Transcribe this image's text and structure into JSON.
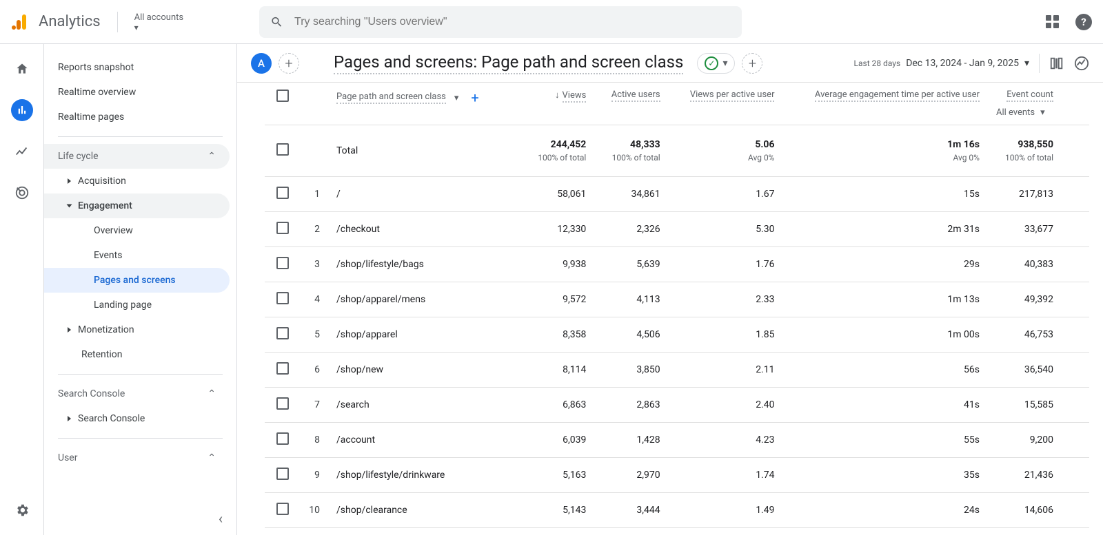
{
  "topbar": {
    "app_name": "Analytics",
    "accounts_label": "All accounts",
    "search_placeholder": "Try searching \"Users overview\""
  },
  "sidebar": {
    "snapshot": "Reports snapshot",
    "realtime_overview": "Realtime overview",
    "realtime_pages": "Realtime pages",
    "life_cycle": "Life cycle",
    "acquisition": "Acquisition",
    "engagement": "Engagement",
    "eng_overview": "Overview",
    "eng_events": "Events",
    "eng_pages": "Pages and screens",
    "eng_landing": "Landing page",
    "monetization": "Monetization",
    "retention": "Retention",
    "search_console_section": "Search Console",
    "search_console_item": "Search Console",
    "user_section": "User"
  },
  "header": {
    "badge": "A",
    "title": "Pages and screens: Page path and screen class",
    "date_label": "Last 28 days",
    "date_range": "Dec 13, 2024 - Jan 9, 2025"
  },
  "table": {
    "dimension_label": "Page path and screen class",
    "columns": {
      "views": "Views",
      "active_users": "Active users",
      "views_per_user": "Views per active user",
      "avg_engagement": "Average engagement time per active user",
      "event_count": "Event count"
    },
    "event_selector": "All events",
    "total_label": "Total",
    "totals": {
      "views": "244,452",
      "views_sub": "100% of total",
      "active_users": "48,333",
      "active_users_sub": "100% of total",
      "views_per_user": "5.06",
      "views_per_user_sub": "Avg 0%",
      "avg_engagement": "1m 16s",
      "avg_engagement_sub": "Avg 0%",
      "event_count": "938,550",
      "event_count_sub": "100% of total"
    },
    "rows": [
      {
        "n": "1",
        "path": "/",
        "views": "58,061",
        "users": "34,861",
        "vpu": "1.67",
        "eng": "15s",
        "events": "217,813"
      },
      {
        "n": "2",
        "path": "/checkout",
        "views": "12,330",
        "users": "2,326",
        "vpu": "5.30",
        "eng": "2m 31s",
        "events": "33,677"
      },
      {
        "n": "3",
        "path": "/shop/lifestyle/bags",
        "views": "9,938",
        "users": "5,639",
        "vpu": "1.76",
        "eng": "29s",
        "events": "40,383"
      },
      {
        "n": "4",
        "path": "/shop/apparel/mens",
        "views": "9,572",
        "users": "4,113",
        "vpu": "2.33",
        "eng": "1m 13s",
        "events": "49,392"
      },
      {
        "n": "5",
        "path": "/shop/apparel",
        "views": "8,358",
        "users": "4,506",
        "vpu": "1.85",
        "eng": "1m 00s",
        "events": "46,753"
      },
      {
        "n": "6",
        "path": "/shop/new",
        "views": "8,114",
        "users": "3,850",
        "vpu": "2.11",
        "eng": "56s",
        "events": "36,540"
      },
      {
        "n": "7",
        "path": "/search",
        "views": "6,863",
        "users": "2,863",
        "vpu": "2.40",
        "eng": "41s",
        "events": "15,585"
      },
      {
        "n": "8",
        "path": "/account",
        "views": "6,039",
        "users": "1,428",
        "vpu": "4.23",
        "eng": "55s",
        "events": "9,200"
      },
      {
        "n": "9",
        "path": "/shop/lifestyle/drinkware",
        "views": "5,163",
        "users": "2,970",
        "vpu": "1.74",
        "eng": "35s",
        "events": "21,436"
      },
      {
        "n": "10",
        "path": "/shop/clearance",
        "views": "5,143",
        "users": "3,444",
        "vpu": "1.49",
        "eng": "24s",
        "events": "14,606"
      }
    ]
  },
  "colors": {
    "primary": "#1a73e8",
    "text": "#3c4043",
    "muted": "#5f6368",
    "border": "#dadce0",
    "chip_bg": "#f1f3f4",
    "active_bg": "#e8f0fe",
    "active_text": "#1967d2",
    "success": "#1e8e3e"
  }
}
